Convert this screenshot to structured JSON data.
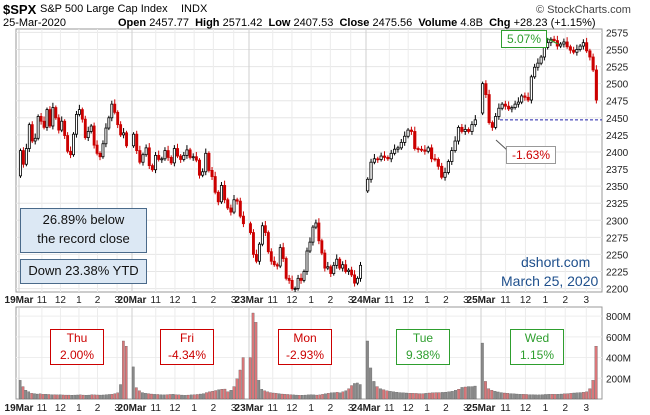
{
  "header": {
    "symbol": "$SPX",
    "name": "S&P 500 Large Cap Index",
    "exchange": "INDX",
    "date": "25-Mar-2020",
    "open_label": "Open",
    "open": "2457.77",
    "high_label": "High",
    "high": "2571.42",
    "low_label": "Low",
    "low": "2407.53",
    "close_label": "Close",
    "close": "2475.56",
    "volume_label": "Volume",
    "volume": "4.8B",
    "chg_label": "Chg",
    "chg": "+28.23 (+1.15%)",
    "watermark": "© StockCharts.com"
  },
  "annotations": {
    "record_line1": "26.89% below",
    "record_line2": "the record close",
    "ytd": "Down 23.38% YTD",
    "high_callout": "5.07%",
    "low_callout": "-1.63%",
    "credit": "dshort.com",
    "credit_date": "March 25, 2020"
  },
  "day_labels": [
    {
      "day": "Thu",
      "pct": "2.00%",
      "color": "#cc0000"
    },
    {
      "day": "Fri",
      "pct": "-4.34%",
      "color": "#cc0000"
    },
    {
      "day": "Mon",
      "pct": "-2.93%",
      "color": "#cc0000"
    },
    {
      "day": "Tue",
      "pct": "9.38%",
      "color": "#2e9e2e"
    },
    {
      "day": "Wed",
      "pct": "1.15%",
      "color": "#2e9e2e"
    }
  ],
  "colors": {
    "up": "#000000",
    "down": "#cc0000",
    "vol_red": "#d9777a",
    "vol_grey": "#8a8a8a",
    "vol_green_dark": "#666666"
  },
  "chart_data": {
    "type": "candlestick",
    "price_axis": {
      "min": 2200,
      "max": 2575,
      "ticks": [
        2200,
        2225,
        2250,
        2275,
        2300,
        2325,
        2350,
        2375,
        2400,
        2425,
        2450,
        2475,
        2500,
        2525,
        2550,
        2575
      ]
    },
    "volume_axis": {
      "ticks": [
        "200M",
        "400M",
        "600M",
        "800M"
      ],
      "values": [
        200,
        400,
        600,
        800
      ]
    },
    "reference_line": 2447,
    "x_ticks": [
      "19Mar",
      "11",
      "12",
      "1",
      "2",
      "3",
      "20Mar",
      "11",
      "12",
      "1",
      "2",
      "3",
      "23Mar",
      "11",
      "12",
      "1",
      "2",
      "3",
      "24Mar",
      "11",
      "12",
      "1",
      "2",
      "3",
      "25Mar",
      "11",
      "12",
      "1",
      "2",
      "3"
    ],
    "days": [
      {
        "label": "19Mar",
        "prices": [
          2365,
          2402,
          2382,
          2405,
          2440,
          2416,
          2420,
          2452,
          2445,
          2436,
          2462,
          2438,
          2465,
          2450,
          2432,
          2445,
          2424,
          2401,
          2396,
          2426,
          2455,
          2462,
          2448,
          2421,
          2430,
          2438,
          2410,
          2398,
          2393,
          2412,
          2435,
          2450,
          2470,
          2458,
          2440,
          2425,
          2428,
          2409
        ]
      },
      {
        "label": "20Mar",
        "prices": [
          2409,
          2426,
          2402,
          2385,
          2396,
          2406,
          2380,
          2374,
          2395,
          2389,
          2390,
          2402,
          2392,
          2384,
          2405,
          2394,
          2389,
          2395,
          2403,
          2392,
          2393,
          2388,
          2366,
          2371,
          2398,
          2373,
          2364,
          2341,
          2327,
          2351,
          2330,
          2318,
          2312,
          2330,
          2328,
          2306,
          2295
        ]
      },
      {
        "label": "23Mar",
        "prices": [
          2295,
          2282,
          2250,
          2240,
          2265,
          2292,
          2282,
          2254,
          2240,
          2235,
          2233,
          2260,
          2244,
          2215,
          2212,
          2200,
          2200,
          2215,
          2212,
          2225,
          2255,
          2268,
          2290,
          2296,
          2270,
          2252,
          2230,
          2232,
          2222,
          2234,
          2243,
          2230,
          2235,
          2225,
          2227,
          2220,
          2208,
          2215,
          2234
        ]
      },
      {
        "label": "24Mar",
        "prices": [
          2343,
          2360,
          2385,
          2390,
          2389,
          2394,
          2392,
          2390,
          2398,
          2404,
          2406,
          2414,
          2423,
          2432,
          2430,
          2405,
          2404,
          2403,
          2401,
          2406,
          2390,
          2389,
          2379,
          2363,
          2370,
          2386,
          2402,
          2416,
          2436,
          2430,
          2433,
          2430,
          2440,
          2447
        ]
      },
      {
        "label": "25Mar",
        "prices": [
          2457,
          2500,
          2484,
          2443,
          2436,
          2452,
          2464,
          2470,
          2467,
          2463,
          2465,
          2470,
          2473,
          2482,
          2480,
          2476,
          2510,
          2524,
          2530,
          2539,
          2553,
          2560,
          2565,
          2563,
          2555,
          2558,
          2561,
          2554,
          2549,
          2546,
          2550,
          2555,
          2560,
          2548,
          2539,
          2520,
          2476
        ]
      }
    ],
    "volumes": [
      {
        "label": "19Mar",
        "values": [
          180,
          120,
          85,
          70,
          55,
          52,
          48,
          50,
          45,
          46,
          44,
          42,
          42,
          40,
          41,
          39,
          38,
          38,
          37,
          38,
          39,
          40,
          38,
          37,
          38,
          42,
          40,
          39,
          38,
          39,
          42,
          44,
          46,
          52,
          60,
          140,
          560,
          510
        ]
      },
      {
        "label": "20Mar",
        "values": [
          310,
          110,
          80,
          62,
          55,
          52,
          48,
          45,
          44,
          42,
          40,
          42,
          44,
          46,
          42,
          40,
          38,
          36,
          38,
          40,
          42,
          44,
          48,
          52,
          62,
          70,
          75,
          82,
          90,
          95,
          96,
          70,
          85,
          120,
          195,
          280,
          400
        ]
      },
      {
        "label": "23Mar",
        "values": [
          400,
          830,
          740,
          180,
          95,
          80,
          70,
          62,
          58,
          55,
          52,
          48,
          46,
          44,
          42,
          40,
          38,
          36,
          37,
          38,
          40,
          42,
          40,
          38,
          40,
          45,
          50,
          55,
          60,
          62,
          65,
          60,
          70,
          80,
          100,
          130,
          150,
          155,
          140
        ]
      },
      {
        "label": "24Mar",
        "values": [
          560,
          300,
          170,
          120,
          100,
          90,
          80,
          74,
          70,
          66,
          62,
          60,
          58,
          56,
          55,
          54,
          52,
          52,
          55,
          58,
          60,
          62,
          62,
          64,
          66,
          70,
          74,
          84,
          95,
          112,
          116,
          120,
          120,
          125
        ]
      },
      {
        "label": "25Mar",
        "values": [
          540,
          170,
          100,
          85,
          75,
          68,
          62,
          58,
          55,
          52,
          50,
          48,
          46,
          45,
          44,
          42,
          42,
          40,
          40,
          42,
          44,
          45,
          46,
          45,
          46,
          48,
          50,
          52,
          55,
          58,
          60,
          62,
          65,
          70,
          100,
          180,
          510
        ]
      }
    ]
  }
}
